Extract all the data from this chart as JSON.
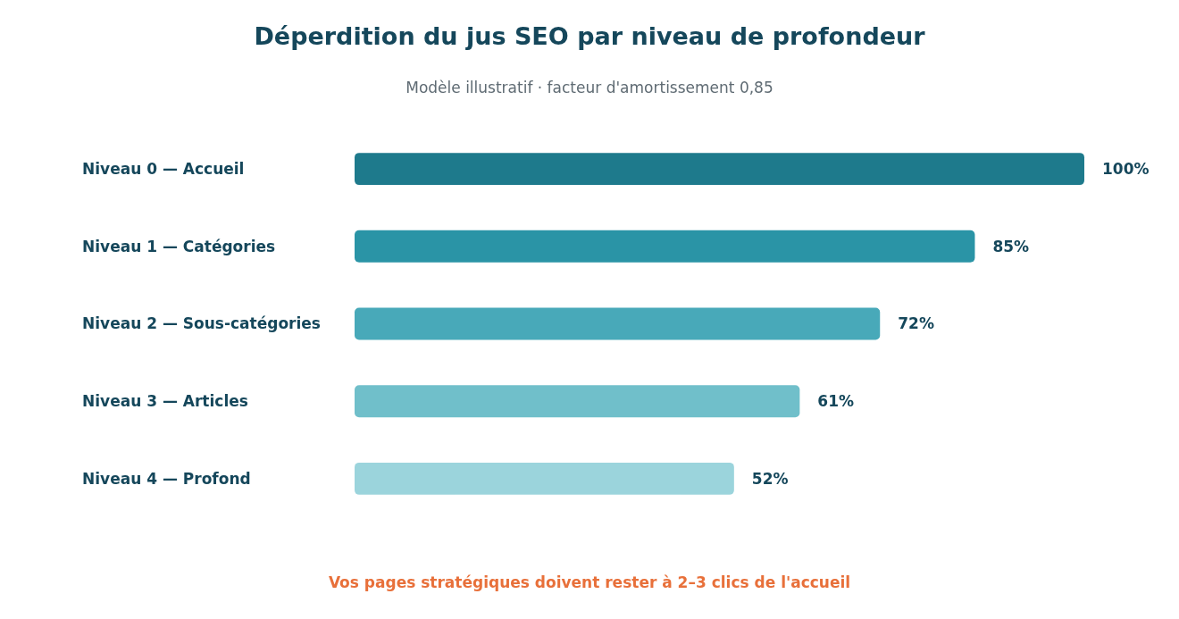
{
  "chart_data": {
    "type": "bar",
    "orientation": "horizontal",
    "title": "Déperdition du jus SEO par niveau de profondeur",
    "subtitle": "Modèle illustratif · facteur d'amortissement 0,85",
    "categories": [
      "Niveau 0 — Accueil",
      "Niveau 1 — Catégories",
      "Niveau 2 — Sous-catégories",
      "Niveau 3 — Articles",
      "Niveau 4 — Profond"
    ],
    "values": [
      100,
      85,
      72,
      61,
      52
    ],
    "value_labels": [
      "100%",
      "85%",
      "72%",
      "61%",
      "52%"
    ],
    "colors": [
      "#1e7a8c",
      "#2a94a6",
      "#48a9b9",
      "#70bfca",
      "#9bd4dc"
    ],
    "xlim": [
      0,
      100
    ],
    "annotations": [
      "Vos pages stratégiques doivent rester à 2–3 clics de l'accueil"
    ]
  }
}
